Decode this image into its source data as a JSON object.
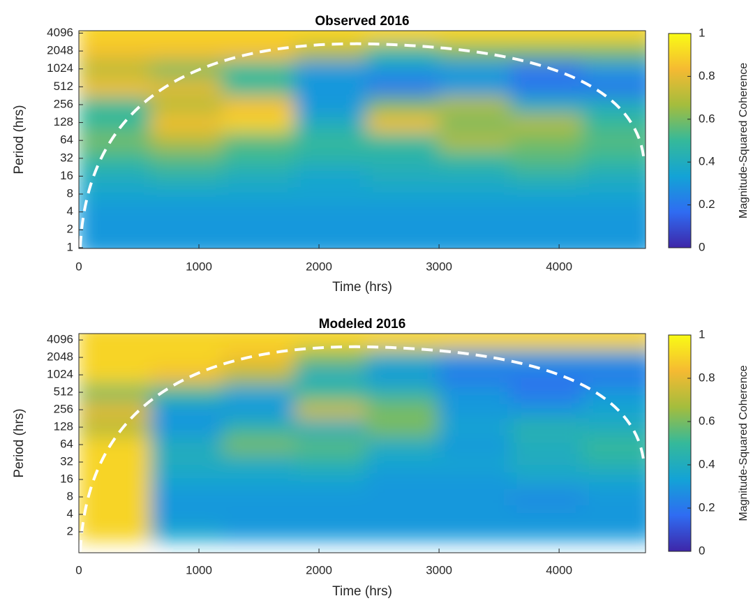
{
  "chart_data": [
    {
      "type": "heatmap",
      "title": "Observed 2016",
      "xlabel": "Time (hrs)",
      "ylabel": "Period (hrs)",
      "colorbar_label": "Magnitude-Squared Coherence",
      "xlim": [
        0,
        4720
      ],
      "xticks": [
        0,
        1000,
        2000,
        3000,
        4000
      ],
      "ylim": [
        0.97,
        4500
      ],
      "yscale": "log2",
      "yticks": [
        1,
        2,
        4,
        8,
        16,
        32,
        64,
        128,
        256,
        512,
        1024,
        2048,
        4096
      ],
      "x_edges": [
        0,
        600,
        1200,
        1800,
        2400,
        3000,
        3600,
        4200,
        4800
      ],
      "z": [
        [
          0.3,
          0.3,
          0.3,
          0.3,
          0.3,
          0.3,
          0.3,
          0.3
        ],
        [
          0.3,
          0.3,
          0.3,
          0.3,
          0.3,
          0.3,
          0.3,
          0.3
        ],
        [
          0.3,
          0.3,
          0.3,
          0.3,
          0.3,
          0.3,
          0.3,
          0.3
        ],
        [
          0.35,
          0.35,
          0.35,
          0.35,
          0.35,
          0.35,
          0.35,
          0.35
        ],
        [
          0.4,
          0.45,
          0.4,
          0.35,
          0.4,
          0.4,
          0.45,
          0.4
        ],
        [
          0.5,
          0.55,
          0.5,
          0.45,
          0.45,
          0.5,
          0.55,
          0.5
        ],
        [
          0.6,
          0.7,
          0.55,
          0.5,
          0.5,
          0.7,
          0.6,
          0.55
        ],
        [
          0.5,
          0.85,
          0.9,
          0.4,
          0.85,
          0.6,
          0.7,
          0.5
        ],
        [
          0.5,
          0.7,
          0.85,
          0.3,
          0.6,
          0.7,
          0.4,
          0.4
        ],
        [
          0.85,
          0.8,
          0.5,
          0.3,
          0.2,
          0.3,
          0.2,
          0.2
        ],
        [
          0.7,
          0.6,
          0.5,
          0.3,
          0.3,
          0.3,
          0.2,
          0.3
        ],
        [
          0.85,
          0.85,
          0.85,
          0.7,
          0.5,
          0.6,
          0.6,
          0.6
        ],
        [
          0.9,
          0.9,
          0.9,
          0.9,
          0.9,
          0.9,
          0.9,
          0.9
        ]
      ],
      "clim": [
        0,
        1
      ],
      "cticks": [
        0,
        0.2,
        0.4,
        0.6,
        0.8,
        1
      ],
      "colormap": [
        "#3e26a8",
        "#2f6cf2",
        "#13a3d6",
        "#35b99a",
        "#a4bd3d",
        "#f5ba32",
        "#f9fb15"
      ]
    },
    {
      "type": "heatmap",
      "title": "Modeled 2016",
      "xlabel": "Time (hrs)",
      "ylabel": "Period (hrs)",
      "colorbar_label": "Magnitude-Squared Coherence",
      "xlim": [
        0,
        4720
      ],
      "xticks": [
        0,
        1000,
        2000,
        3000,
        4000
      ],
      "ylim": [
        0.87,
        5270
      ],
      "yscale": "log2",
      "yticks": [
        2,
        4,
        8,
        16,
        32,
        64,
        128,
        256,
        512,
        1024,
        2048,
        4096
      ],
      "x_edges": [
        0,
        600,
        1200,
        1800,
        2400,
        3000,
        3600,
        4200,
        4800
      ],
      "z": [
        [
          0.9,
          0.35,
          0.3,
          0.3,
          0.3,
          0.3,
          0.3,
          0.3
        ],
        [
          0.9,
          0.3,
          0.3,
          0.3,
          0.3,
          0.3,
          0.3,
          0.3
        ],
        [
          0.9,
          0.3,
          0.3,
          0.3,
          0.3,
          0.3,
          0.25,
          0.3
        ],
        [
          0.9,
          0.35,
          0.35,
          0.35,
          0.3,
          0.3,
          0.35,
          0.35
        ],
        [
          0.9,
          0.4,
          0.4,
          0.45,
          0.35,
          0.35,
          0.4,
          0.45
        ],
        [
          0.9,
          0.4,
          0.6,
          0.55,
          0.4,
          0.3,
          0.4,
          0.5
        ],
        [
          0.7,
          0.3,
          0.45,
          0.4,
          0.6,
          0.35,
          0.45,
          0.4
        ],
        [
          0.8,
          0.3,
          0.3,
          0.75,
          0.6,
          0.3,
          0.3,
          0.35
        ],
        [
          0.6,
          0.5,
          0.35,
          0.5,
          0.45,
          0.3,
          0.2,
          0.3
        ],
        [
          0.9,
          0.85,
          0.7,
          0.4,
          0.3,
          0.2,
          0.2,
          0.2
        ],
        [
          0.9,
          0.9,
          0.85,
          0.6,
          0.4,
          0.3,
          0.3,
          0.3
        ],
        [
          0.9,
          0.9,
          0.9,
          0.9,
          0.9,
          0.9,
          0.9,
          0.9
        ]
      ],
      "clim": [
        0,
        1
      ],
      "cticks": [
        0,
        0.2,
        0.4,
        0.6,
        0.8,
        1
      ],
      "colormap": [
        "#3e26a8",
        "#2f6cf2",
        "#13a3d6",
        "#35b99a",
        "#a4bd3d",
        "#f5ba32",
        "#f9fb15"
      ]
    }
  ]
}
